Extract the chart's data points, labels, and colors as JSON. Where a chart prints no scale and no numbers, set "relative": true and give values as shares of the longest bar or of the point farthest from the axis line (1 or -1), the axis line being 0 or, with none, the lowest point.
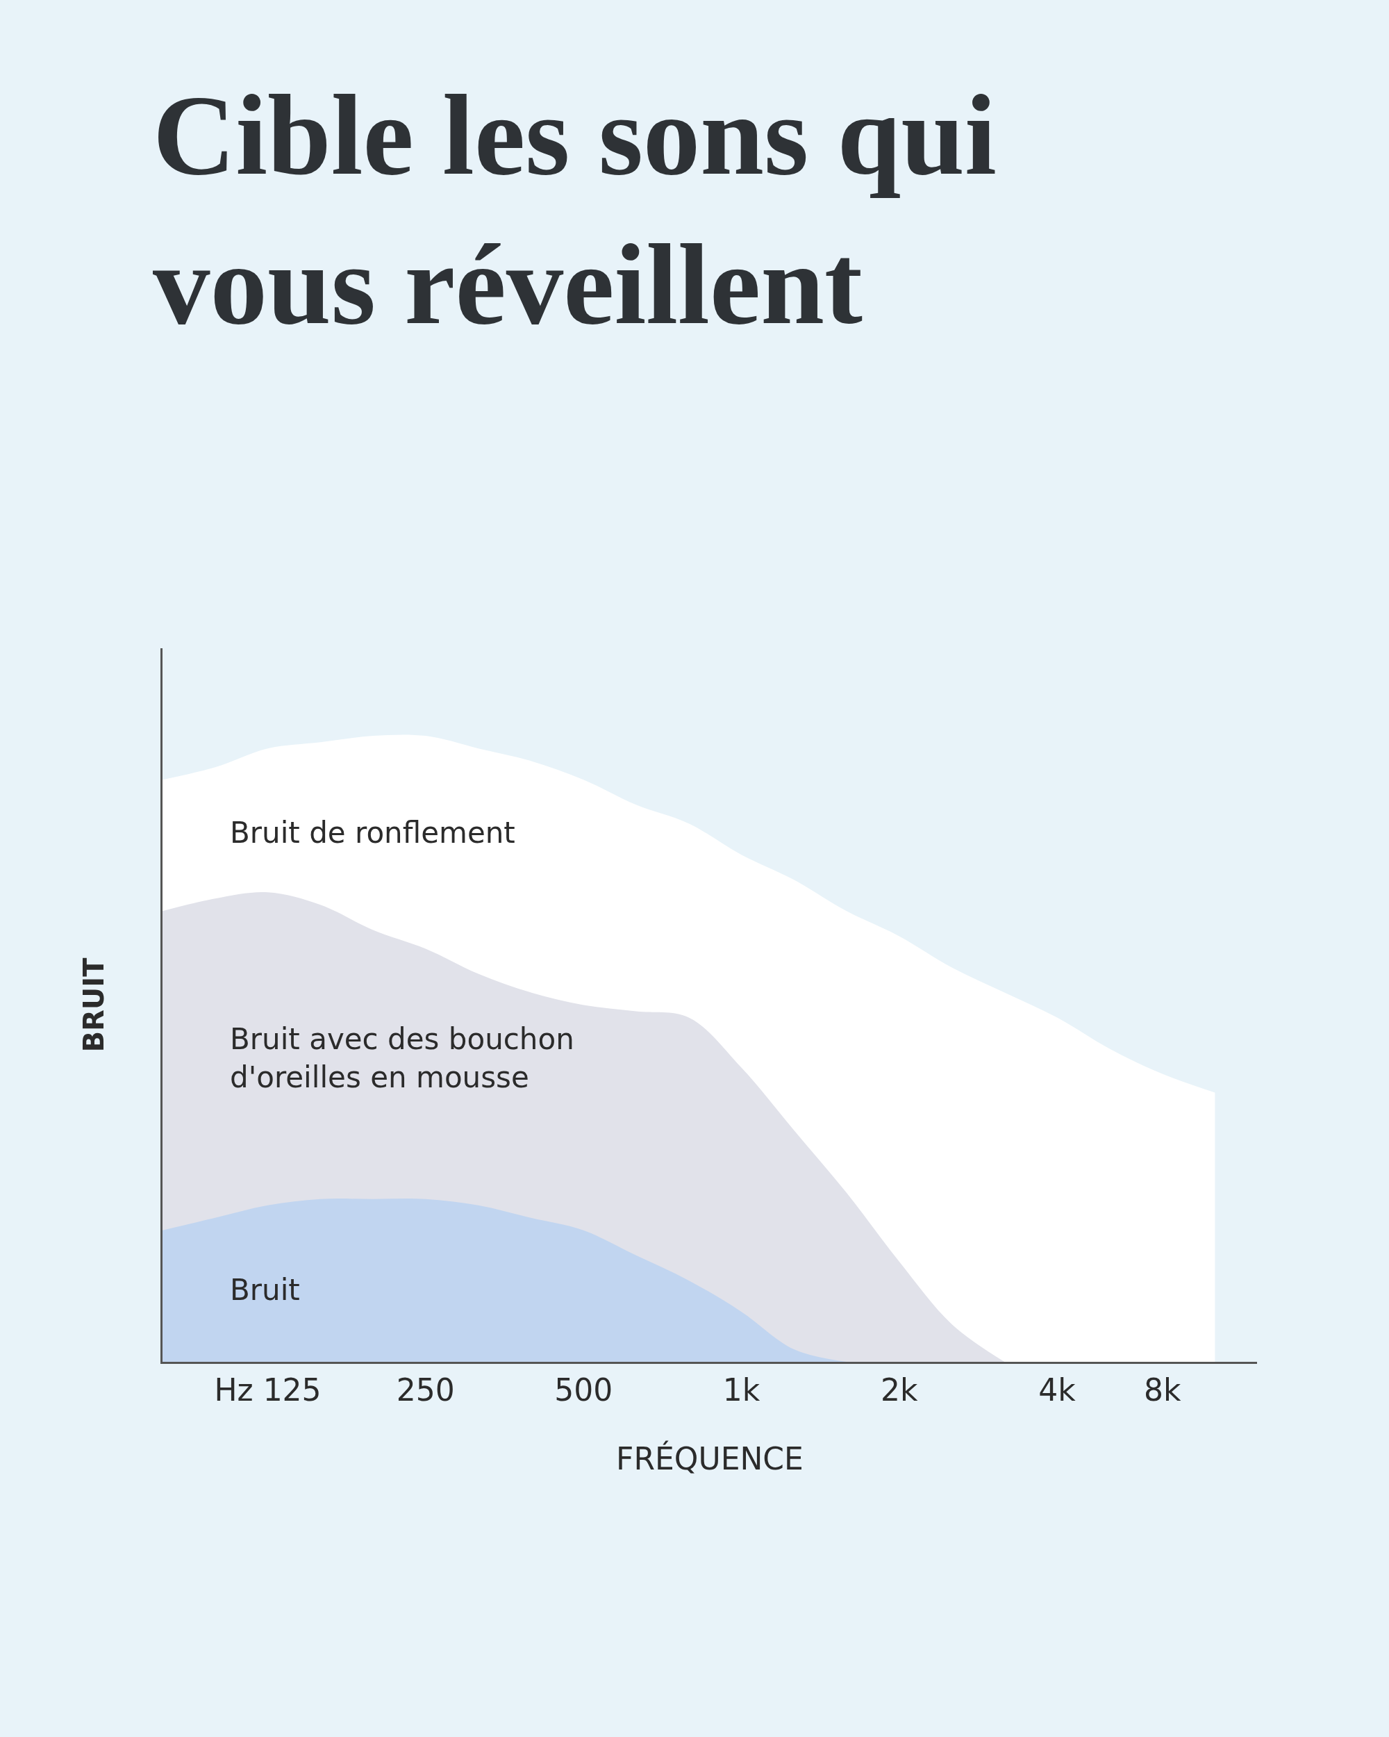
{
  "chart_data": {
    "type": "area",
    "relative": true,
    "title": "Cible les sons qui\nvous réveillent",
    "xlabel": "FRÉQUENCE",
    "ylabel": "BRUIT",
    "grid": false,
    "legend": false,
    "categories": [
      null,
      null,
      "Hz 125",
      null,
      null,
      "250",
      null,
      null,
      "500",
      null,
      null,
      "1k",
      null,
      null,
      "2k",
      null,
      null,
      "4k",
      null,
      "8k",
      null
    ],
    "series": [
      {
        "name": "Bruit de ronflement",
        "color": "#ffffff",
        "values": [
          0.93,
          0.95,
          0.98,
          0.99,
          1.0,
          1.0,
          0.98,
          0.96,
          0.93,
          0.89,
          0.86,
          0.81,
          0.77,
          0.72,
          0.68,
          0.63,
          0.59,
          0.55,
          0.5,
          0.46,
          0.43
        ]
      },
      {
        "name": "Bruit avec des bouchon\nd'oreilles en mousse",
        "color": "#e1e2ea",
        "values": [
          0.72,
          0.74,
          0.75,
          0.73,
          0.69,
          0.66,
          0.62,
          0.59,
          0.57,
          0.56,
          0.55,
          0.47,
          0.37,
          0.27,
          0.16,
          0.06,
          0,
          null,
          null,
          null,
          null
        ]
      },
      {
        "name": "Bruit",
        "color": "#c1d5f0",
        "values": [
          0.21,
          0.23,
          0.25,
          0.26,
          0.26,
          0.26,
          0.25,
          0.23,
          0.21,
          0.17,
          0.13,
          0.08,
          0.02,
          0,
          null,
          null,
          null,
          null,
          null,
          null,
          null
        ]
      }
    ]
  }
}
